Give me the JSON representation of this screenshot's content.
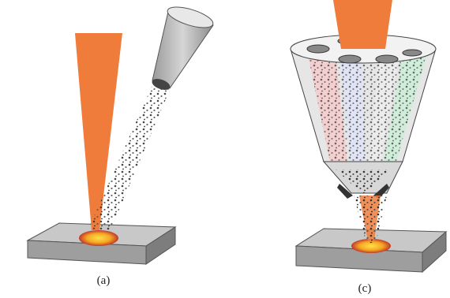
{
  "panels": [
    {
      "label": "(a)"
    },
    {
      "label": "(c)"
    }
  ]
}
